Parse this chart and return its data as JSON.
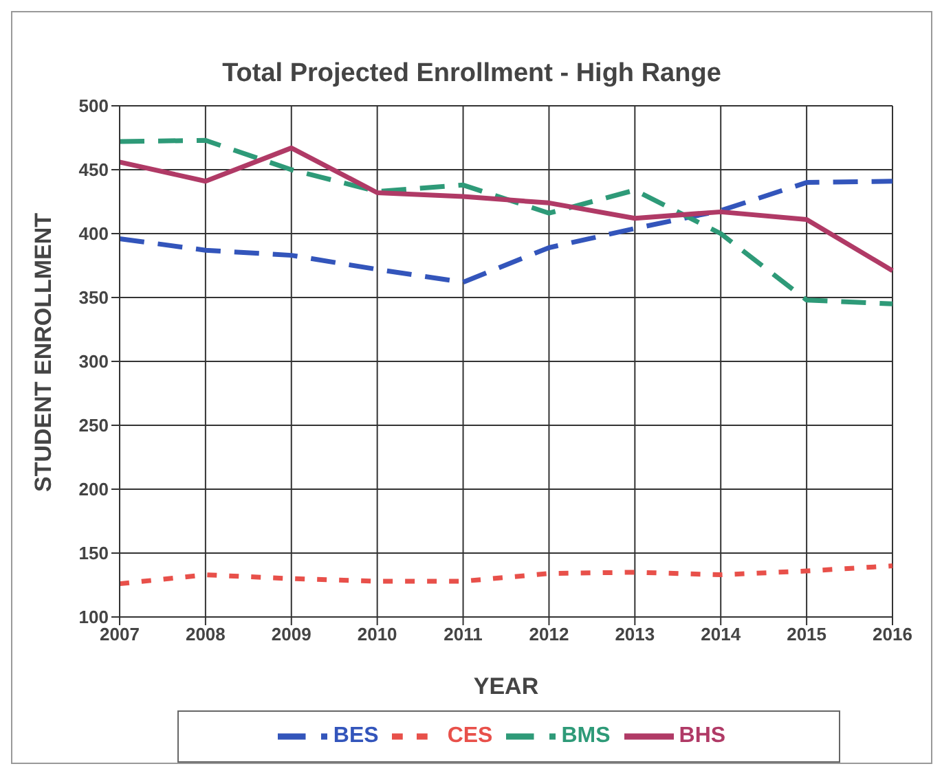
{
  "chart_data": {
    "type": "line",
    "title": "Total Projected Enrollment - High Range",
    "xlabel": "YEAR",
    "ylabel": "STUDENT ENROLLMENT",
    "categories": [
      "2007",
      "2008",
      "2009",
      "2010",
      "2011",
      "2012",
      "2013",
      "2014",
      "2015",
      "2016"
    ],
    "series": [
      {
        "name": "BES",
        "color": "#3355bb",
        "line_style": "dashed",
        "values": [
          396,
          387,
          383,
          372,
          362,
          389,
          404,
          418,
          440,
          441
        ]
      },
      {
        "name": "CES",
        "color": "#e8504a",
        "line_style": "dotted",
        "values": [
          126,
          133,
          130,
          128,
          128,
          134,
          135,
          133,
          136,
          140
        ]
      },
      {
        "name": "BMS",
        "color": "#2e9a78",
        "line_style": "dashed",
        "values": [
          472,
          473,
          450,
          433,
          438,
          416,
          434,
          400,
          348,
          345
        ]
      },
      {
        "name": "BHS",
        "color": "#b03a66",
        "line_style": "solid",
        "values": [
          456,
          441,
          467,
          432,
          429,
          424,
          412,
          417,
          411,
          371
        ]
      }
    ],
    "ylim": [
      100,
      500
    ],
    "yticks": [
      100,
      150,
      200,
      250,
      300,
      350,
      400,
      450,
      500
    ],
    "grid": true,
    "legend": "bottom",
    "marker": "none"
  }
}
